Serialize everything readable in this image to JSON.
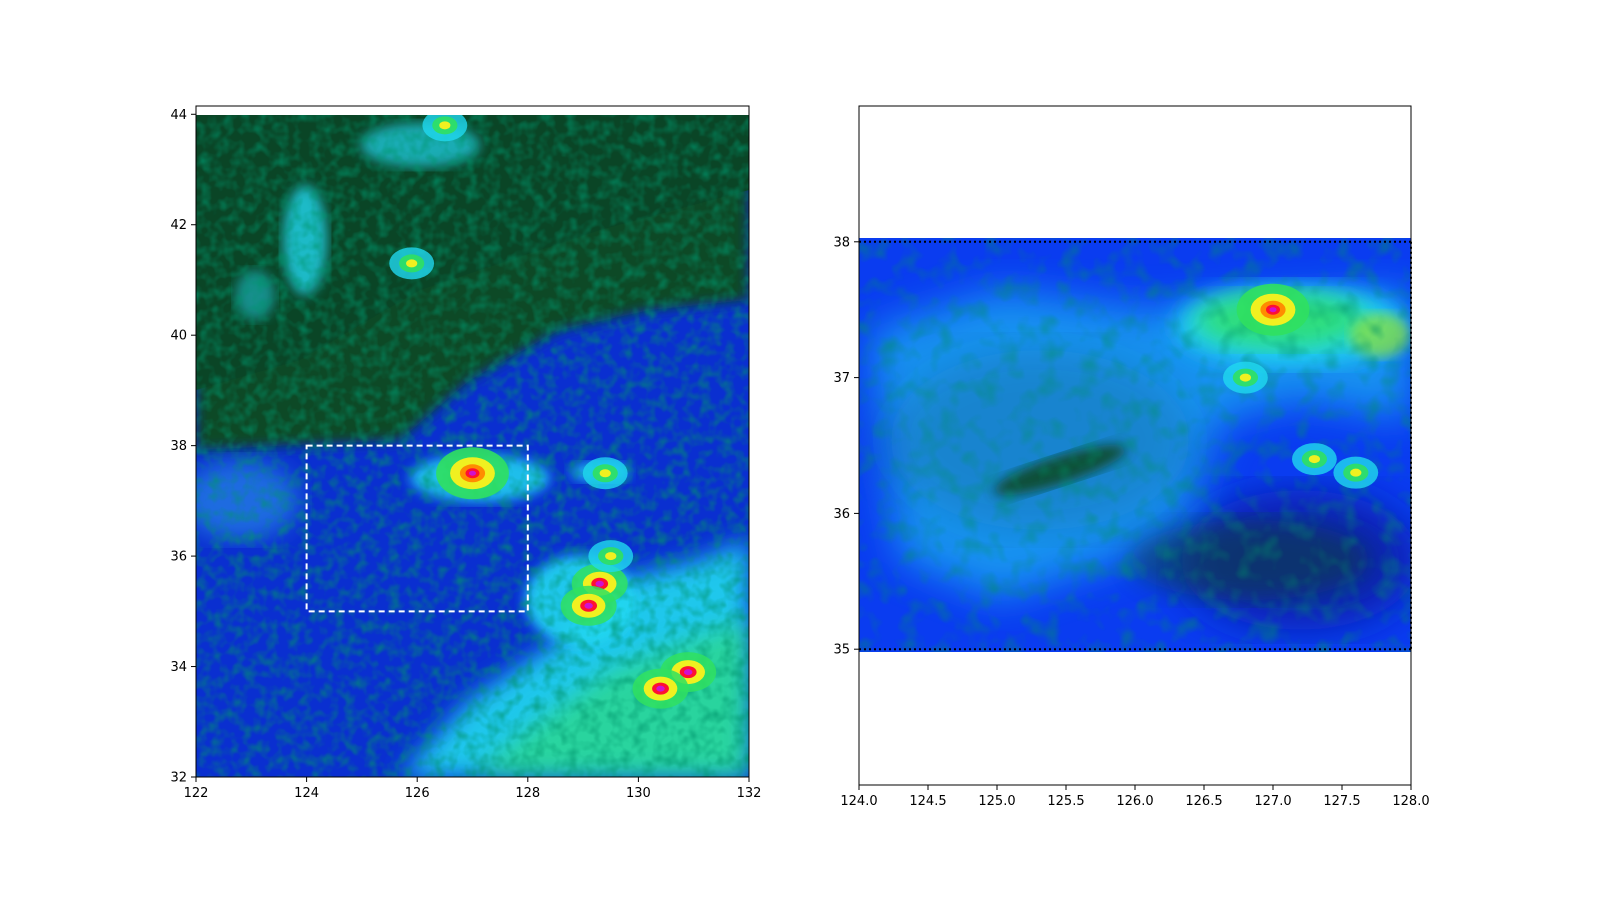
{
  "chart_data": [
    {
      "type": "heatmap",
      "panel": "left",
      "xlim": [
        122,
        132
      ],
      "ylim": [
        32,
        44.15
      ],
      "xticks": [
        "122",
        "124",
        "126",
        "128",
        "130",
        "132"
      ],
      "yticks": [
        "32",
        "34",
        "36",
        "38",
        "40",
        "42",
        "44"
      ],
      "colormap": "gist_ncar",
      "subset_box": {
        "x": [
          124,
          128
        ],
        "y": [
          35,
          38
        ],
        "style": "dashed",
        "color": "#ffffff"
      },
      "data_extent": {
        "x": [
          122,
          132
        ],
        "y": [
          32,
          44
        ]
      },
      "hotspots": [
        {
          "x": 127.0,
          "y": 37.5,
          "level": "peak"
        },
        {
          "x": 129.3,
          "y": 35.5,
          "level": "high"
        },
        {
          "x": 129.1,
          "y": 35.1,
          "level": "high"
        },
        {
          "x": 130.9,
          "y": 33.9,
          "level": "high"
        },
        {
          "x": 130.4,
          "y": 33.6,
          "level": "high"
        },
        {
          "x": 129.5,
          "y": 36.0,
          "level": "mid"
        },
        {
          "x": 126.5,
          "y": 43.8,
          "level": "mid"
        },
        {
          "x": 125.9,
          "y": 41.3,
          "level": "mid"
        },
        {
          "x": 129.4,
          "y": 37.5,
          "level": "mid"
        }
      ]
    },
    {
      "type": "heatmap",
      "panel": "right",
      "xlim": [
        124.0,
        128.0
      ],
      "ylim": [
        34.0,
        39.0
      ],
      "xticks": [
        "124.0",
        "124.5",
        "125.0",
        "125.5",
        "126.0",
        "126.5",
        "127.0",
        "127.5",
        "128.0"
      ],
      "yticks": [
        "35",
        "36",
        "37",
        "38"
      ],
      "colormap": "gist_ncar",
      "data_extent": {
        "x": [
          124.0,
          128.0
        ],
        "y": [
          35.0,
          38.0
        ]
      },
      "boundary_lines": {
        "y": [
          35,
          38
        ],
        "style": "dotted",
        "color": "#000000"
      },
      "hotspots": [
        {
          "x": 127.0,
          "y": 37.5,
          "level": "peak"
        },
        {
          "x": 126.8,
          "y": 37.0,
          "level": "mid"
        },
        {
          "x": 127.3,
          "y": 36.4,
          "level": "mid"
        },
        {
          "x": 127.6,
          "y": 36.3,
          "level": "mid"
        }
      ]
    }
  ],
  "colors": {
    "dark_green": "#0b4a28",
    "deep_blue": "#0a1fa0",
    "blue": "#0a3cf0",
    "cyan": "#20d8f0",
    "green": "#30e060",
    "yellow": "#f0f020",
    "orange": "#ff8c00",
    "red": "#ff1030",
    "magenta": "#d010d0",
    "subset_box": "#ffffff"
  }
}
